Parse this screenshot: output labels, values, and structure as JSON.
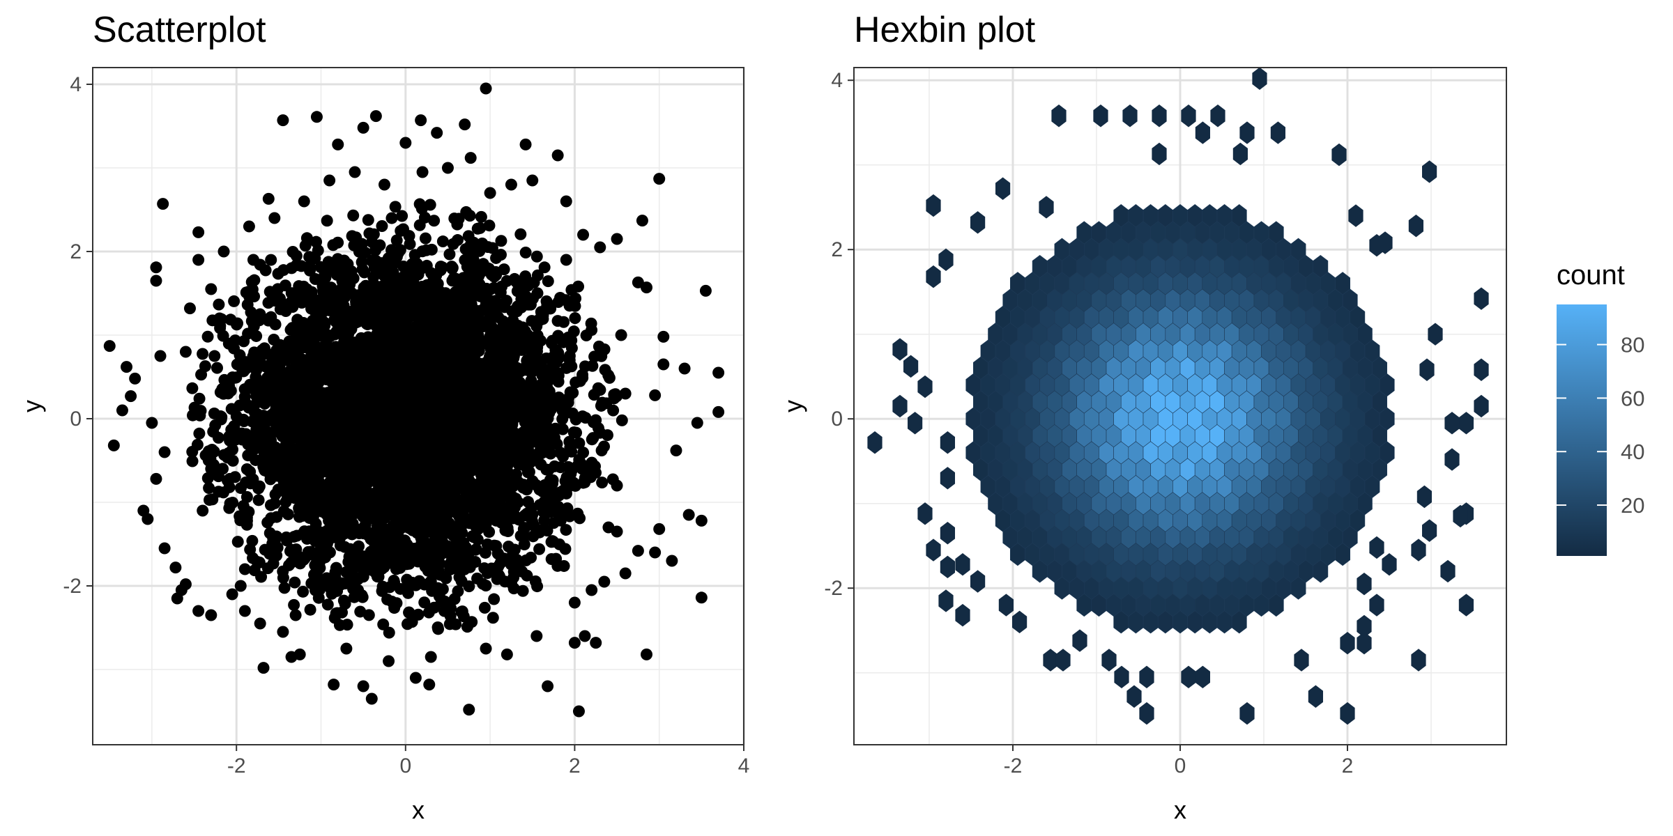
{
  "chart_data": [
    {
      "type": "scatter",
      "title": "Scatterplot",
      "xlabel": "x",
      "ylabel": "y",
      "xlim": [
        -3.7,
        4.0
      ],
      "ylim": [
        -3.9,
        4.2
      ],
      "xticks": [
        -2,
        0,
        2,
        4
      ],
      "yticks": [
        -2,
        0,
        2,
        4
      ],
      "tick_labels_x": [
        "-2",
        "0",
        "2",
        "4"
      ],
      "tick_labels_y": [
        "-2",
        "0",
        "2",
        "4"
      ],
      "grid": true,
      "point_color": "#000000",
      "core_density": {
        "center": [
          0,
          0
        ],
        "note_sd": 1.0
      },
      "points": [
        [
          0.95,
          3.95
        ],
        [
          -0.35,
          3.62
        ],
        [
          -1.45,
          3.57
        ],
        [
          -1.05,
          3.61
        ],
        [
          0.18,
          3.57
        ],
        [
          0.37,
          3.42
        ],
        [
          0.7,
          3.52
        ],
        [
          -0.5,
          3.48
        ],
        [
          0.0,
          3.3
        ],
        [
          0.77,
          3.12
        ],
        [
          1.42,
          3.28
        ],
        [
          1.8,
          3.15
        ],
        [
          3.0,
          2.87
        ],
        [
          -2.87,
          2.57
        ],
        [
          -2.45,
          2.23
        ],
        [
          -1.62,
          2.63
        ],
        [
          -0.8,
          3.28
        ],
        [
          -0.6,
          2.95
        ],
        [
          1.5,
          2.85
        ],
        [
          2.8,
          2.37
        ],
        [
          -2.95,
          1.81
        ],
        [
          -2.95,
          1.65
        ],
        [
          -2.45,
          1.9
        ],
        [
          2.75,
          1.63
        ],
        [
          2.85,
          1.57
        ],
        [
          3.55,
          1.53
        ],
        [
          -3.5,
          0.87
        ],
        [
          -3.3,
          0.62
        ],
        [
          -3.2,
          0.48
        ],
        [
          -3.35,
          0.1
        ],
        [
          -3.25,
          0.27
        ],
        [
          -3.45,
          -0.32
        ],
        [
          3.7,
          0.55
        ],
        [
          3.7,
          0.08
        ],
        [
          3.45,
          -0.05
        ],
        [
          3.5,
          -1.22
        ],
        [
          3.35,
          -1.15
        ],
        [
          3.15,
          -1.7
        ],
        [
          3.0,
          -1.32
        ],
        [
          2.95,
          -1.6
        ],
        [
          3.5,
          -2.14
        ],
        [
          2.85,
          -2.82
        ],
        [
          -3.1,
          -1.1
        ],
        [
          -3.05,
          -1.2
        ],
        [
          -2.95,
          -0.72
        ],
        [
          -2.85,
          -1.55
        ],
        [
          -2.72,
          -1.78
        ],
        [
          -2.65,
          -2.05
        ],
        [
          -2.7,
          -2.15
        ],
        [
          -2.6,
          -1.98
        ],
        [
          -2.05,
          -2.1
        ],
        [
          -1.72,
          -2.45
        ],
        [
          -1.68,
          -2.98
        ],
        [
          -1.35,
          -2.85
        ],
        [
          -1.3,
          -2.35
        ],
        [
          -0.85,
          -3.18
        ],
        [
          -0.4,
          -3.35
        ],
        [
          -0.5,
          -3.2
        ],
        [
          0.12,
          -3.1
        ],
        [
          0.28,
          -3.18
        ],
        [
          0.75,
          -3.48
        ],
        [
          1.68,
          -3.2
        ],
        [
          2.05,
          -3.5
        ],
        [
          2.0,
          -2.68
        ],
        [
          2.12,
          -2.6
        ],
        [
          2.25,
          -2.68
        ],
        [
          2.75,
          -1.58
        ],
        [
          2.5,
          -1.35
        ],
        [
          1.2,
          -2.82
        ],
        [
          -1.25,
          -2.82
        ],
        [
          -2.45,
          -2.3
        ],
        [
          -2.3,
          -2.35
        ],
        [
          -1.95,
          -2.0
        ],
        [
          2.2,
          -2.05
        ],
        [
          2.35,
          -1.95
        ],
        [
          2.6,
          -1.85
        ],
        [
          3.05,
          0.98
        ],
        [
          3.2,
          -0.38
        ],
        [
          3.3,
          0.6
        ],
        [
          3.05,
          0.65
        ],
        [
          2.95,
          0.28
        ],
        [
          -2.85,
          -0.4
        ],
        [
          -2.9,
          0.75
        ],
        [
          -3.0,
          -0.05
        ],
        [
          -2.55,
          1.32
        ],
        [
          -2.3,
          1.55
        ],
        [
          2.5,
          2.15
        ],
        [
          2.3,
          2.05
        ],
        [
          2.1,
          2.2
        ],
        [
          1.9,
          2.6
        ],
        [
          -2.15,
          2.0
        ],
        [
          -1.85,
          2.3
        ],
        [
          -1.55,
          2.4
        ],
        [
          -1.2,
          2.6
        ],
        [
          -0.9,
          2.85
        ],
        [
          0.5,
          3.0
        ],
        [
          0.2,
          2.95
        ],
        [
          -0.25,
          2.8
        ],
        [
          1.0,
          2.7
        ],
        [
          1.25,
          2.8
        ],
        [
          -2.4,
          -1.1
        ],
        [
          -2.5,
          0.05
        ],
        [
          -2.6,
          0.8
        ],
        [
          -2.3,
          -0.6
        ],
        [
          2.5,
          -0.8
        ],
        [
          2.6,
          0.3
        ],
        [
          2.55,
          1.0
        ],
        [
          2.4,
          -1.3
        ],
        [
          1.55,
          -2.6
        ],
        [
          0.95,
          -2.75
        ],
        [
          0.3,
          -2.85
        ],
        [
          -0.2,
          -2.9
        ],
        [
          -0.7,
          -2.75
        ],
        [
          -1.45,
          -2.55
        ],
        [
          -1.9,
          -2.3
        ],
        [
          -2.2,
          1.2
        ],
        [
          -1.8,
          1.9
        ],
        [
          1.9,
          1.9
        ],
        [
          2.0,
          -2.2
        ],
        [
          -1.9,
          -1.8
        ]
      ]
    },
    {
      "type": "heatmap",
      "subtype": "hexbin",
      "title": "Hexbin plot",
      "xlabel": "x",
      "ylabel": "y",
      "xlim": [
        -3.9,
        3.9
      ],
      "ylim": [
        -3.85,
        4.15
      ],
      "xticks": [
        -2,
        0,
        2
      ],
      "yticks": [
        -2,
        0,
        2,
        4
      ],
      "tick_labels_x": [
        "-2",
        "0",
        "2"
      ],
      "tick_labels_y": [
        "-2",
        "0",
        "2",
        "4"
      ],
      "grid": true,
      "bin_width_x": 0.1766,
      "bin_height_y": 0.2,
      "count_model": {
        "peak": 95,
        "center": [
          0,
          0
        ],
        "sd": 1.0,
        "peak_note": "max count"
      },
      "outlier_bins": [
        [
          0.95,
          4.02
        ],
        [
          -1.45,
          3.58
        ],
        [
          -0.95,
          3.58
        ],
        [
          -0.6,
          3.58
        ],
        [
          -0.25,
          3.58
        ],
        [
          0.45,
          3.58
        ],
        [
          0.1,
          3.58
        ],
        [
          0.27,
          3.38
        ],
        [
          0.8,
          3.38
        ],
        [
          1.17,
          3.38
        ],
        [
          -2.12,
          2.72
        ],
        [
          -0.25,
          3.13
        ],
        [
          0.72,
          3.13
        ],
        [
          1.9,
          3.12
        ],
        [
          2.98,
          2.92
        ],
        [
          -2.95,
          2.52
        ],
        [
          -2.42,
          2.32
        ],
        [
          2.82,
          2.28
        ],
        [
          2.45,
          2.08
        ],
        [
          -2.95,
          1.68
        ],
        [
          -2.8,
          1.88
        ],
        [
          3.6,
          1.42
        ],
        [
          3.05,
          1.0
        ],
        [
          2.95,
          0.58
        ],
        [
          3.6,
          0.58
        ],
        [
          3.6,
          0.15
        ],
        [
          3.42,
          -0.05
        ],
        [
          3.25,
          -0.05
        ],
        [
          -3.35,
          0.82
        ],
        [
          -3.22,
          0.62
        ],
        [
          -3.05,
          0.38
        ],
        [
          -3.35,
          0.15
        ],
        [
          -3.17,
          -0.05
        ],
        [
          -3.65,
          -0.28
        ],
        [
          -2.78,
          -0.28
        ],
        [
          -2.78,
          -0.7
        ],
        [
          2.92,
          -0.92
        ],
        [
          3.25,
          -0.48
        ],
        [
          3.42,
          -1.12
        ],
        [
          -3.05,
          -1.12
        ],
        [
          -2.78,
          -1.35
        ],
        [
          -2.95,
          -1.55
        ],
        [
          -2.6,
          -1.72
        ],
        [
          -2.42,
          -1.92
        ],
        [
          -2.78,
          -1.75
        ],
        [
          -2.8,
          -2.15
        ],
        [
          -2.6,
          -2.32
        ],
        [
          -2.08,
          -2.2
        ],
        [
          -1.92,
          -2.4
        ],
        [
          -1.55,
          -2.85
        ],
        [
          -1.4,
          -2.85
        ],
        [
          -0.7,
          -3.05
        ],
        [
          -0.4,
          -3.05
        ],
        [
          -0.55,
          -3.28
        ],
        [
          -0.4,
          -3.48
        ],
        [
          0.1,
          -3.05
        ],
        [
          0.27,
          -3.05
        ],
        [
          0.8,
          -3.48
        ],
        [
          1.62,
          -3.28
        ],
        [
          2.0,
          -3.48
        ],
        [
          2.85,
          -2.85
        ],
        [
          2.0,
          -2.65
        ],
        [
          2.2,
          -2.65
        ],
        [
          2.2,
          -2.45
        ],
        [
          2.35,
          -2.2
        ],
        [
          2.2,
          -1.95
        ],
        [
          2.5,
          -1.72
        ],
        [
          2.35,
          -1.52
        ],
        [
          2.85,
          -1.55
        ],
        [
          2.98,
          -1.32
        ],
        [
          3.42,
          -2.2
        ],
        [
          3.2,
          -1.8
        ],
        [
          3.35,
          -1.15
        ],
        [
          1.45,
          -2.85
        ],
        [
          -0.85,
          -2.85
        ],
        [
          -1.2,
          -2.62
        ],
        [
          2.1,
          2.4
        ],
        [
          2.35,
          2.05
        ],
        [
          -1.6,
          2.5
        ]
      ],
      "legend": {
        "title": "count",
        "position": "right",
        "ticks": [
          20,
          40,
          60,
          80
        ],
        "tick_labels": [
          "20",
          "40",
          "60",
          "80"
        ],
        "range": [
          1,
          95
        ],
        "low_color": "#132B43",
        "high_color": "#56B1F7"
      }
    }
  ]
}
